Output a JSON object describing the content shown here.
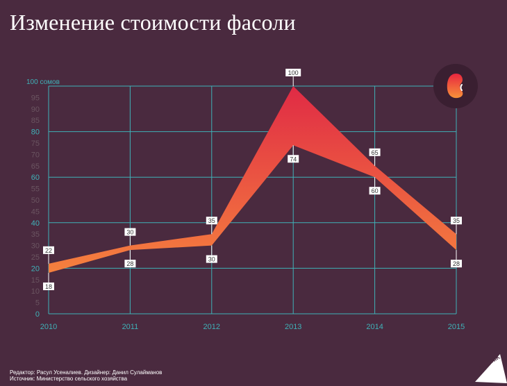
{
  "title": "Изменение стоимости фасоли",
  "footer": {
    "line1": "Редактор: Расул Усеналиев. Дизайнер: Данил Сулайманов",
    "line2": "Источник: Министерство сельского хозяйства"
  },
  "logo": {
    "text": "SPUTNIK"
  },
  "icon": {
    "name": "bean-icon"
  },
  "colors": {
    "background": "#4a2a3f",
    "grid": "#3fb2b8",
    "ytick": "#6b5561",
    "ytick_major": "#3fb2b8",
    "band_low": "#f5813e",
    "band_high": "#e02a45",
    "badge": "#3a1f31"
  },
  "chart_data": {
    "type": "area",
    "x": [
      "2010",
      "2011",
      "2012",
      "2013",
      "2014",
      "2015"
    ],
    "ylim": [
      0,
      100
    ],
    "yticks": [
      0,
      5,
      10,
      15,
      20,
      25,
      30,
      35,
      40,
      45,
      50,
      55,
      60,
      65,
      70,
      75,
      80,
      85,
      90,
      95,
      100
    ],
    "ytick_labels": [
      "0",
      "5",
      "10",
      "15",
      "20",
      "25",
      "30",
      "35",
      "40",
      "45",
      "50",
      "55",
      "60",
      "65",
      "70",
      "75",
      "80",
      "85",
      "90",
      "95",
      "100 сомов"
    ],
    "major_yticks": [
      0,
      20,
      40,
      60,
      80,
      100
    ],
    "grid": true,
    "series": [
      {
        "values": [
          22,
          30,
          35,
          100,
          65,
          35
        ]
      },
      {
        "values": [
          18,
          28,
          30,
          74,
          60,
          28
        ]
      }
    ]
  }
}
